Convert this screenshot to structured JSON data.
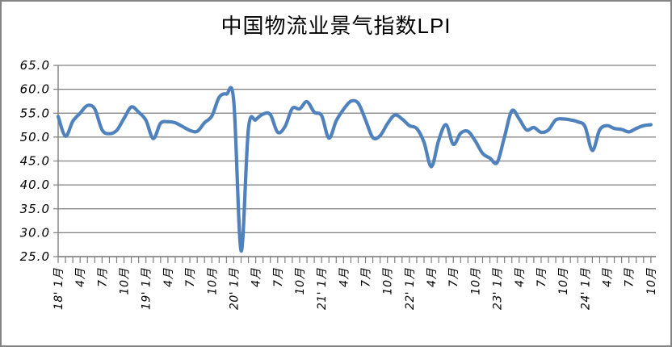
{
  "chart": {
    "title": "中国物流业景气指数LPI"
  },
  "chart_data": {
    "type": "line",
    "title": "中国物流业景气指数LPI",
    "series_name": "中国物流业景气指数LPI",
    "x_start": "2018-01",
    "x_freq": "monthly",
    "x_end": "2024-10",
    "values": [
      54.3,
      50.2,
      53.3,
      55.0,
      56.6,
      55.9,
      51.5,
      50.7,
      51.4,
      53.9,
      56.3,
      55.2,
      53.5,
      49.7,
      52.9,
      53.2,
      53.0,
      52.2,
      51.4,
      51.2,
      53.0,
      54.4,
      58.3,
      59.0,
      57.5,
      26.2,
      51.8,
      53.6,
      54.8,
      54.7,
      51.0,
      52.2,
      56.0,
      55.9,
      57.4,
      55.2,
      54.5,
      49.8,
      53.4,
      55.8,
      57.5,
      57.1,
      53.6,
      49.9,
      50.3,
      52.8,
      54.6,
      53.8,
      52.4,
      51.8,
      48.9,
      43.8,
      49.3,
      52.6,
      48.5,
      50.8,
      51.2,
      49.2,
      46.6,
      45.6,
      44.7,
      50.1,
      55.5,
      53.8,
      51.5,
      52.0,
      51.0,
      51.5,
      53.6,
      53.8,
      53.6,
      53.2,
      52.2,
      47.2,
      51.5,
      52.4,
      51.8,
      51.6,
      51.1,
      51.8,
      52.4,
      52.6
    ],
    "ylim": [
      25,
      65
    ],
    "y_tick_step": 5,
    "y_ticks": [
      {
        "value": 65,
        "label": "65.0"
      },
      {
        "value": 60,
        "label": "60.0"
      },
      {
        "value": 55,
        "label": "55.0"
      },
      {
        "value": 50,
        "label": "50.0"
      },
      {
        "value": 45,
        "label": "45.0"
      },
      {
        "value": 40,
        "label": "40.0"
      },
      {
        "value": 35,
        "label": "35.0"
      },
      {
        "value": 30,
        "label": "30.0"
      },
      {
        "value": 25,
        "label": "25.0"
      }
    ],
    "x_tick_every_n_months": 3,
    "x_tick_labels": [
      "18' 1月",
      "4月",
      "7月",
      "10月",
      "19' 1月",
      "4月",
      "7月",
      "10月",
      "20' 1月",
      "4月",
      "7月",
      "10月",
      "21' 1月",
      "4月",
      "7月",
      "10月",
      "22' 1月",
      "4月",
      "7月",
      "10月",
      "23' 1月",
      "4月",
      "7月",
      "10月",
      "24' 1月",
      "4月",
      "7月",
      "10月"
    ],
    "grid": "horizontal",
    "legend": "none",
    "line_smoothed": true,
    "colors": {
      "line": "#4F81BD",
      "grid": "#7F7F7F",
      "axis": "#7F7F7F",
      "text": "#000000",
      "frame": "#838383",
      "background": "#FFFFFF"
    }
  }
}
